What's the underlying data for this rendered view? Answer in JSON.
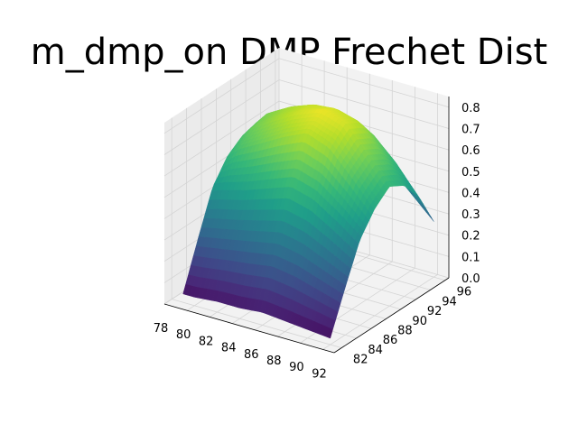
{
  "chart_data": {
    "type": "surface3d",
    "title": "m_dmp_on DMP Frechet Dist",
    "xlabel": "",
    "ylabel": "",
    "zlabel": "",
    "x": [
      79,
      80,
      82,
      84,
      86,
      88,
      90,
      92
    ],
    "y": [
      82,
      84,
      86,
      88,
      90,
      92,
      94,
      96
    ],
    "z": [
      [
        0.04,
        0.04,
        0.05,
        0.05,
        0.06,
        0.05,
        0.04,
        0.03
      ],
      [
        0.25,
        0.26,
        0.28,
        0.3,
        0.32,
        0.3,
        0.26,
        0.22
      ],
      [
        0.45,
        0.47,
        0.5,
        0.54,
        0.58,
        0.55,
        0.48,
        0.4
      ],
      [
        0.55,
        0.6,
        0.66,
        0.72,
        0.77,
        0.73,
        0.62,
        0.5
      ],
      [
        0.6,
        0.66,
        0.73,
        0.79,
        0.83,
        0.8,
        0.68,
        0.56
      ],
      [
        0.62,
        0.68,
        0.74,
        0.78,
        0.79,
        0.76,
        0.64,
        0.52
      ],
      [
        0.55,
        0.6,
        0.66,
        0.69,
        0.68,
        0.65,
        0.55,
        0.42
      ],
      [
        0.42,
        0.46,
        0.5,
        0.52,
        0.5,
        0.46,
        0.36,
        0.26
      ]
    ],
    "xlim": [
      78,
      93
    ],
    "ylim": [
      81,
      96.5
    ],
    "zlim": [
      0.0,
      0.85
    ],
    "xticks": [
      "78",
      "80",
      "82",
      "84",
      "86",
      "88",
      "90",
      "92"
    ],
    "yticks": [
      "82",
      "84",
      "86",
      "88",
      "90",
      "92",
      "94",
      "96"
    ],
    "zticks": [
      "0.0",
      "0.1",
      "0.2",
      "0.3",
      "0.4",
      "0.5",
      "0.6",
      "0.7",
      "0.8"
    ],
    "colormap": "viridis",
    "grid": true
  }
}
